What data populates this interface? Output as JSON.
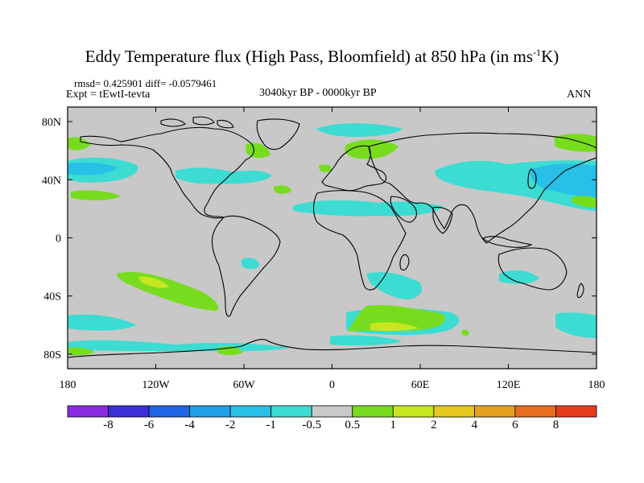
{
  "title": {
    "main": "Eddy Temperature flux (High Pass, Bloomfield) at 850 hPa (in ms",
    "exponent": "-1",
    "unit_tail": "K)"
  },
  "stats": "rmsd= 0.425901  diff= -0.0579461",
  "expt": "Expt = tEwtI-tevta",
  "period": "3040kyr BP - 0000kyr BP",
  "season": "ANN",
  "map": {
    "lat_ticks": [
      "80N",
      "40N",
      "0",
      "40S",
      "80S"
    ],
    "lat_values": [
      80,
      40,
      0,
      -40,
      -80
    ],
    "lon_ticks": [
      "180",
      "120W",
      "60W",
      "0",
      "60E",
      "120E",
      "180"
    ],
    "lon_values": [
      -180,
      -120,
      -60,
      0,
      60,
      120,
      180
    ],
    "lat_range": [
      -90,
      90
    ],
    "lon_range": [
      -180,
      180
    ],
    "background_color": "#c8c8c8"
  },
  "colorbar": {
    "labels": [
      "-8",
      "-6",
      "-4",
      "-2",
      "-1",
      "-0.5",
      "0.5",
      "1",
      "2",
      "4",
      "6",
      "8"
    ],
    "colors": [
      "#8a2be2",
      "#3a2fd8",
      "#1e64e6",
      "#1ea0e6",
      "#28c0e6",
      "#3cdcd2",
      "#c8c8c8",
      "#78dc1e",
      "#c8e61e",
      "#e6c81e",
      "#e6a01e",
      "#e66e1e",
      "#e63c1e"
    ]
  }
}
